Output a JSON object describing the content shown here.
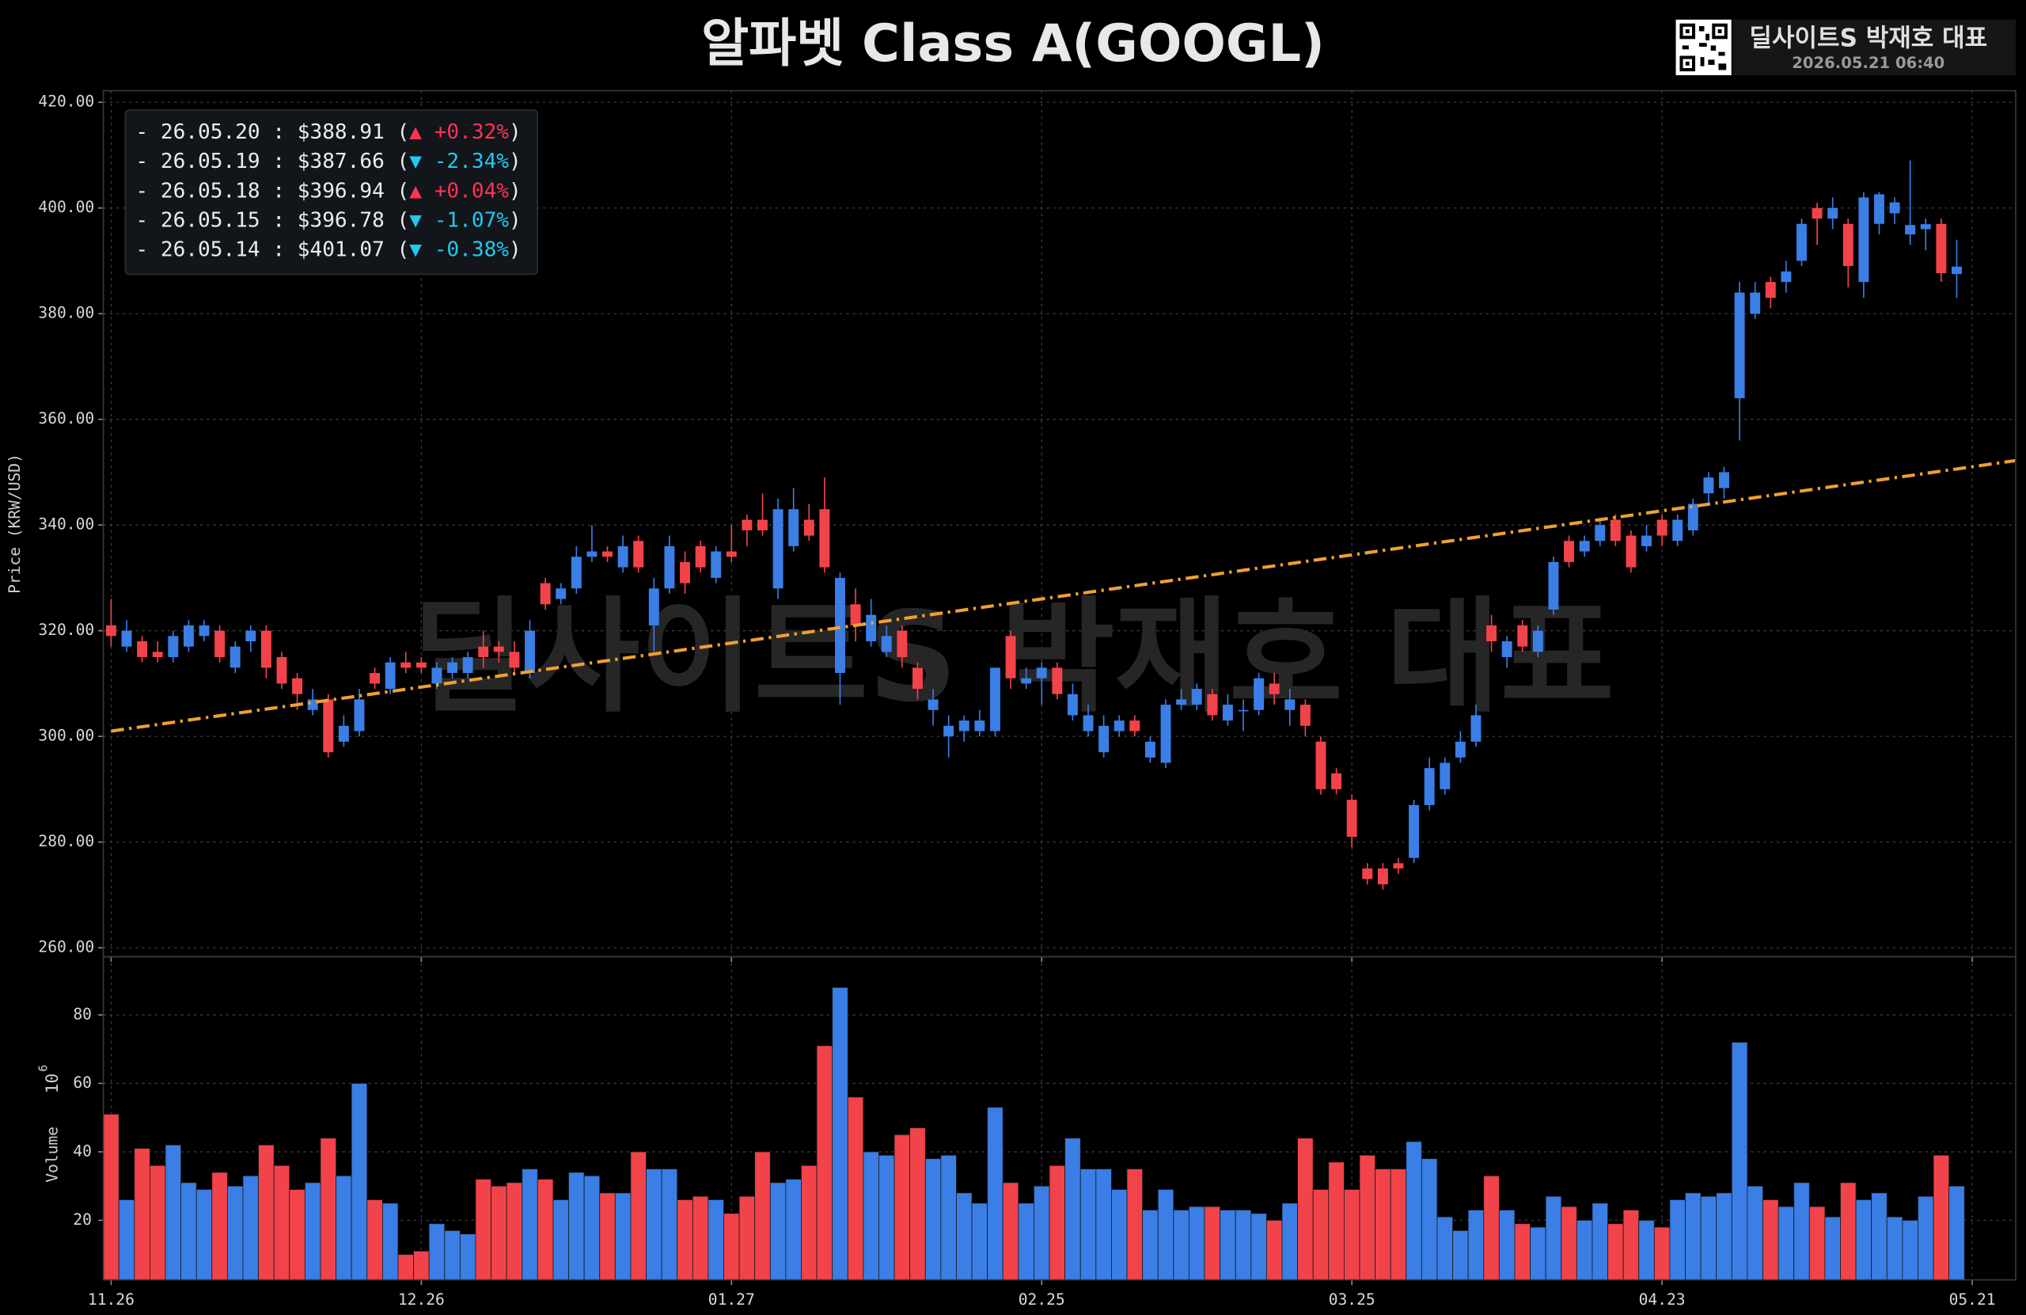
{
  "header": {
    "brand": "딜사이트S 박재호 대표",
    "timestamp": "2026.05.21 06:40"
  },
  "chart_data": {
    "type": "candlestick",
    "title": "알파벳 Class A(GOOGL)",
    "x": [
      0,
      1,
      2,
      3,
      4,
      5,
      6,
      7,
      8,
      9,
      10,
      11,
      12,
      13,
      14,
      15,
      16,
      17,
      18,
      19,
      20,
      21,
      22,
      23,
      24,
      25,
      26,
      27,
      28,
      29,
      30,
      31,
      32,
      33,
      34,
      35,
      36,
      37,
      38,
      39,
      40,
      41,
      42,
      43,
      44,
      45,
      46,
      47,
      48,
      49,
      50,
      51,
      52,
      53,
      54,
      55,
      56,
      57,
      58,
      59,
      60,
      61,
      62,
      63,
      64,
      65,
      66,
      67,
      68,
      69,
      70,
      71,
      72,
      73,
      74,
      75,
      76,
      77,
      78,
      79,
      80,
      81,
      82,
      83,
      84,
      85,
      86,
      87,
      88,
      89,
      90,
      91,
      92,
      93,
      94,
      95,
      96,
      97,
      98,
      99,
      100,
      101,
      102,
      103,
      104,
      105,
      106,
      107,
      108,
      109,
      110,
      111,
      112,
      113,
      114,
      115,
      116,
      117,
      118,
      119
    ],
    "open": [
      321,
      317,
      318,
      316,
      315,
      317,
      319,
      320,
      313,
      318,
      320,
      315,
      311,
      305,
      307,
      299,
      301,
      312,
      309,
      314,
      314,
      310,
      312,
      312,
      317,
      317,
      316,
      312,
      329,
      326,
      328,
      334,
      335,
      332,
      337,
      321,
      328,
      333,
      336,
      330,
      335,
      341,
      341,
      328,
      336,
      341,
      343,
      312,
      325,
      318,
      316,
      320,
      313,
      305,
      300,
      301,
      301,
      301,
      319,
      310,
      311,
      313,
      304,
      301,
      297,
      301,
      303,
      296,
      295,
      306,
      306,
      308,
      303,
      305,
      305,
      310,
      305,
      306,
      299,
      293,
      288,
      275,
      275,
      276,
      277,
      287,
      290,
      296,
      299,
      321,
      315,
      321,
      316,
      324,
      337,
      335,
      337,
      341,
      338,
      336,
      341,
      337,
      339,
      346,
      347,
      364,
      380,
      386,
      386,
      390,
      400,
      398,
      397,
      386,
      397,
      399,
      395,
      396,
      397,
      387.5
    ],
    "high": [
      326,
      322,
      319,
      318,
      320,
      322,
      322,
      321,
      318,
      321,
      321,
      316,
      312,
      309,
      308,
      304,
      309,
      313,
      315,
      316,
      315,
      314,
      315,
      316,
      320,
      318,
      318,
      322,
      330,
      329,
      336,
      340,
      336,
      338,
      338,
      330,
      338,
      335,
      337,
      336,
      340,
      342,
      346,
      345,
      347,
      344,
      349,
      331,
      328,
      326,
      321,
      321,
      314,
      309,
      304,
      304,
      305,
      313,
      320,
      313,
      314,
      314,
      310,
      306,
      304,
      304,
      304,
      300,
      307,
      309,
      310,
      309,
      308,
      307,
      312,
      312,
      309,
      307,
      300,
      294,
      289,
      276,
      276,
      277,
      288,
      296,
      296,
      301,
      306,
      323,
      319,
      322,
      321,
      334,
      338,
      338,
      341,
      342,
      339,
      340,
      342,
      342,
      345,
      350,
      351,
      386,
      386,
      387,
      390,
      398,
      401,
      402,
      398,
      403,
      403,
      402,
      409,
      398,
      398,
      394
    ],
    "low": [
      317,
      316,
      314,
      314,
      314,
      316,
      318,
      314,
      312,
      316,
      311,
      309,
      305,
      304,
      296,
      298,
      300,
      309,
      308,
      312,
      312,
      309,
      311,
      311,
      313,
      314,
      312,
      311,
      324,
      325,
      327,
      333,
      333,
      331,
      331,
      316,
      327,
      327,
      331,
      329,
      333,
      336,
      338,
      326,
      335,
      337,
      331,
      306,
      318,
      317,
      315,
      313,
      307,
      302,
      296,
      299,
      300,
      300,
      309,
      309,
      306,
      307,
      303,
      300,
      296,
      300,
      300,
      295,
      294,
      305,
      305,
      303,
      302,
      301,
      304,
      306,
      302,
      300,
      289,
      289,
      279,
      272,
      271,
      274,
      276,
      286,
      289,
      295,
      298,
      316,
      313,
      316,
      315,
      323,
      332,
      334,
      336,
      336,
      331,
      335,
      336,
      336,
      338,
      344,
      345,
      356,
      379,
      381,
      384,
      389,
      393,
      396,
      385,
      383,
      395,
      397,
      393,
      392,
      386,
      383
    ],
    "close": [
      319,
      320,
      315,
      315,
      319,
      321,
      321,
      315,
      317,
      320,
      313,
      310,
      308,
      307,
      297,
      302,
      307,
      310,
      314,
      313,
      313,
      313,
      314,
      315,
      315,
      316,
      313,
      320,
      325,
      328,
      334,
      335,
      334,
      336,
      332,
      328,
      336,
      329,
      332,
      335,
      334,
      339,
      339,
      343,
      343,
      338,
      332,
      330,
      321,
      323,
      319,
      315,
      309,
      307,
      302,
      303,
      303,
      313,
      311,
      311,
      313,
      308,
      308,
      304,
      302,
      303,
      301,
      299,
      306,
      307,
      309,
      304,
      306,
      305,
      311,
      308,
      307,
      302,
      290,
      290,
      281,
      273,
      272,
      275,
      287,
      294,
      295,
      299,
      304,
      318,
      318,
      317,
      320,
      333,
      333,
      337,
      340,
      337,
      332,
      338,
      338,
      341,
      344,
      349,
      350,
      384,
      384,
      383,
      388,
      397,
      398,
      400,
      389,
      402,
      402.6,
      401.07,
      396.78,
      396.94,
      387.66,
      388.91
    ],
    "volume": [
      51,
      26,
      41,
      36,
      42,
      31,
      29,
      34,
      30,
      33,
      42,
      36,
      29,
      31,
      44,
      33,
      60,
      26,
      25,
      10,
      11,
      19,
      17,
      16,
      32,
      30,
      31,
      35,
      32,
      26,
      34,
      33,
      28,
      28,
      40,
      35,
      35,
      26,
      27,
      26,
      22,
      27,
      40,
      31,
      32,
      36,
      71,
      88,
      56,
      40,
      39,
      45,
      47,
      38,
      39,
      28,
      25,
      53,
      31,
      25,
      30,
      36,
      44,
      35,
      35,
      29,
      35,
      23,
      29,
      23,
      24,
      24,
      23,
      23,
      22,
      20,
      25,
      44,
      29,
      37,
      29,
      39,
      35,
      35,
      43,
      38,
      21,
      17,
      23,
      33,
      23,
      19,
      18,
      27,
      24,
      20,
      25,
      19,
      23,
      20,
      18,
      26,
      28,
      27,
      28,
      72,
      30,
      26,
      24,
      31,
      24,
      21,
      31,
      26,
      28,
      21,
      20,
      27,
      39,
      30
    ],
    "up_color": "#3a7ee6",
    "down_color": "#f2434a",
    "xlim": [
      -0.5,
      122.8
    ],
    "xticks": [
      {
        "value": 0,
        "label": "11.26"
      },
      {
        "value": 20,
        "label": "12.26"
      },
      {
        "value": 40,
        "label": "01.27"
      },
      {
        "value": 60,
        "label": "02.25"
      },
      {
        "value": 80,
        "label": "03.25"
      },
      {
        "value": 100,
        "label": "04.23"
      },
      {
        "value": 120,
        "label": "05.21"
      }
    ],
    "ylim": [
      258.3,
      422.2
    ],
    "yticks": [
      {
        "value": 260,
        "label": "260.00"
      },
      {
        "value": 280,
        "label": "280.00"
      },
      {
        "value": 300,
        "label": "300.00"
      },
      {
        "value": 320,
        "label": "320.00"
      },
      {
        "value": 340,
        "label": "340.00"
      },
      {
        "value": 360,
        "label": "360.00"
      },
      {
        "value": 380,
        "label": "380.00"
      },
      {
        "value": 400,
        "label": "400.00"
      },
      {
        "value": 420,
        "label": "420.00"
      }
    ],
    "y_label": "Price (KRW/USD)",
    "volume_ylim": [
      2.6,
      97
    ],
    "volume_yticks": [
      20,
      40,
      60,
      80
    ],
    "volume_label": "Volume",
    "volume_base": "10",
    "volume_exponent": "6",
    "grid": true,
    "trendline": {
      "x": [
        0,
        122.8
      ],
      "y": [
        301,
        352.2
      ],
      "color": "#f0a030"
    },
    "price_legend": {
      "suffix": ")",
      "up_color": "#ff3355",
      "down_color": "#22c8ee",
      "lines": [
        {
          "text": "- 26.05.20 : $388.91 (",
          "change": "▲ +0.32%",
          "direction": "up"
        },
        {
          "text": "- 26.05.19 : $387.66 (",
          "change": "▼ -2.34%",
          "direction": "down"
        },
        {
          "text": "- 26.05.18 : $396.94 (",
          "change": "▲ +0.04%",
          "direction": "up"
        },
        {
          "text": "- 26.05.15 : $396.78 (",
          "change": "▼ -1.07%",
          "direction": "down"
        },
        {
          "text": "- 26.05.14 : $401.07 (",
          "change": "▼ -0.38%",
          "direction": "down"
        }
      ]
    }
  }
}
